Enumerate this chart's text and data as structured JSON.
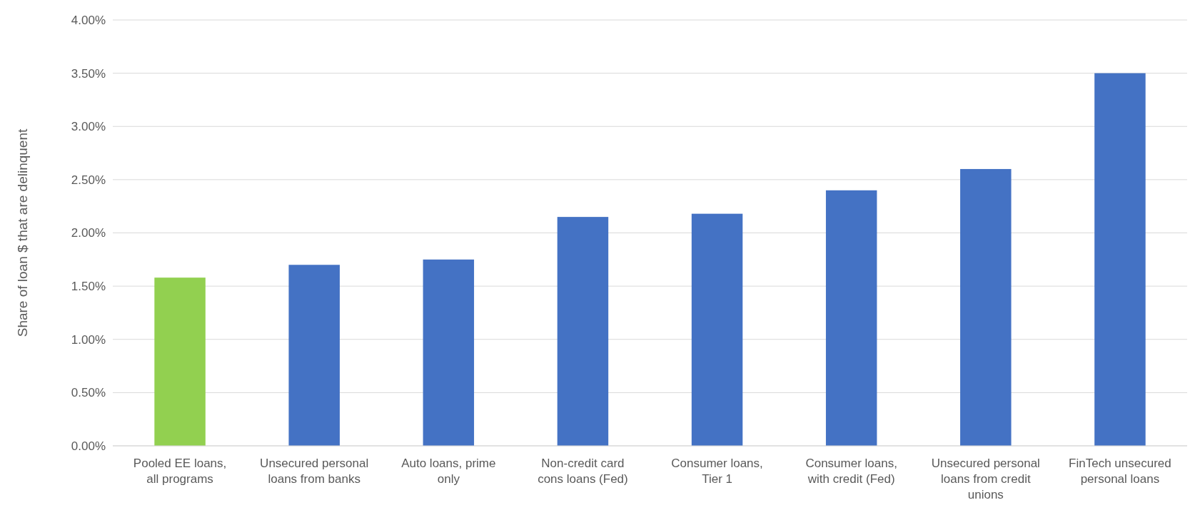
{
  "chart_data": {
    "type": "bar",
    "ylabel": "Share of loan $ that are delinquent",
    "categories": [
      "Pooled EE loans, all programs",
      "Unsecured personal loans from banks",
      "Auto loans, prime only",
      "Non-credit card cons loans (Fed)",
      "Consumer loans, Tier 1",
      "Consumer loans, with credit (Fed)",
      "Unsecured personal loans from credit unions",
      "FinTech unsecured personal loans"
    ],
    "values": [
      1.58,
      1.7,
      1.75,
      2.15,
      2.18,
      2.4,
      2.6,
      3.5
    ],
    "colors": [
      "#92d050",
      "#4472c4",
      "#4472c4",
      "#4472c4",
      "#4472c4",
      "#4472c4",
      "#4472c4",
      "#4472c4"
    ],
    "ylim": [
      0,
      4
    ],
    "yticks": [
      {
        "value": 0,
        "label": "0.00%"
      },
      {
        "value": 0.5,
        "label": "0.50%"
      },
      {
        "value": 1,
        "label": "1.00%"
      },
      {
        "value": 1.5,
        "label": "1.50%"
      },
      {
        "value": 2,
        "label": "2.00%"
      },
      {
        "value": 2.5,
        "label": "2.50%"
      },
      {
        "value": 3,
        "label": "3.00%"
      },
      {
        "value": 3.5,
        "label": "3.50%"
      },
      {
        "value": 4,
        "label": "4.00%"
      }
    ],
    "grid": "y"
  }
}
